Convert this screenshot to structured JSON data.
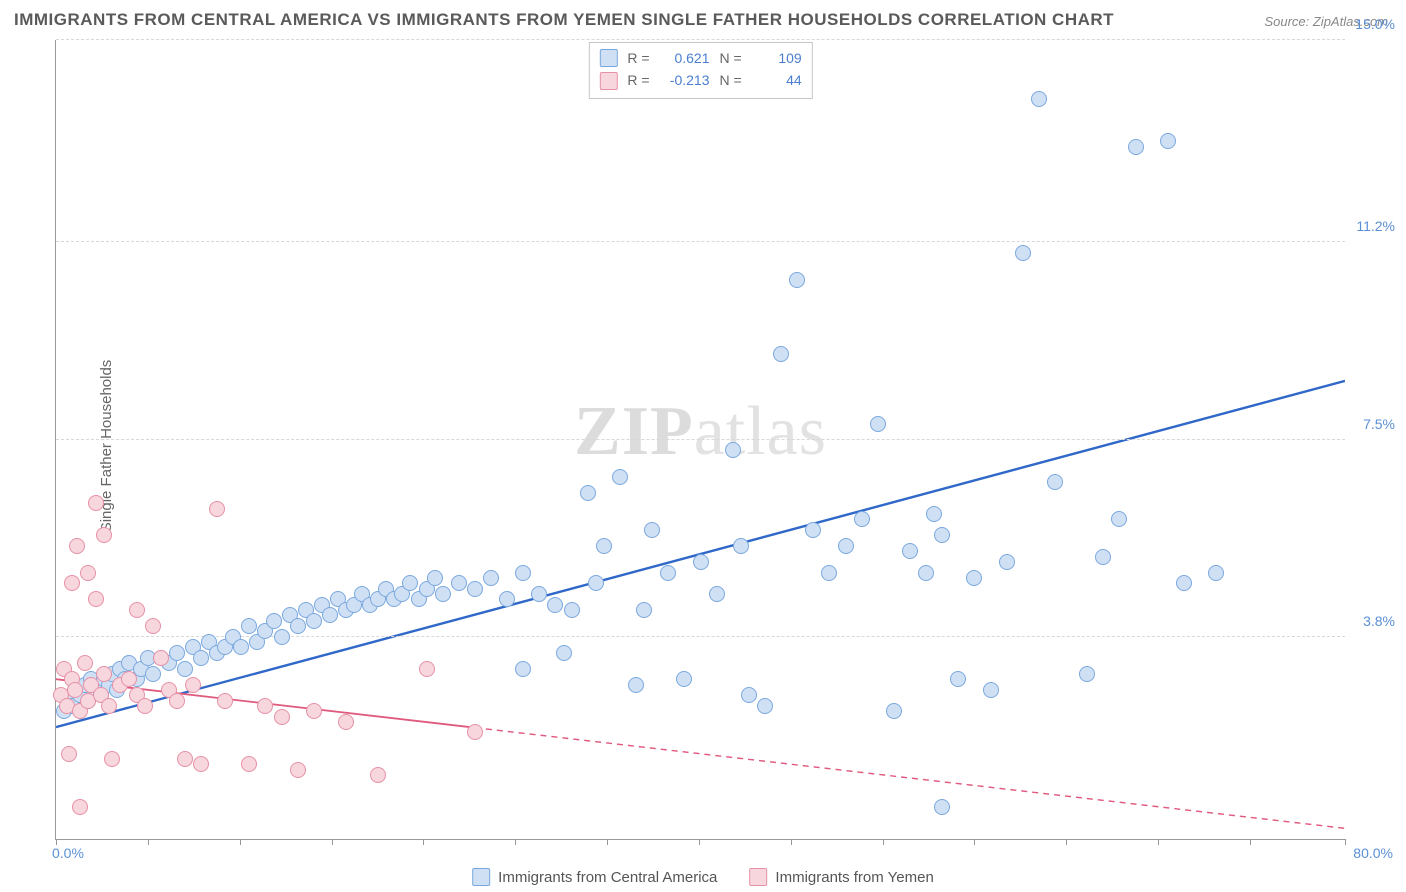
{
  "title": "IMMIGRANTS FROM CENTRAL AMERICA VS IMMIGRANTS FROM YEMEN SINGLE FATHER HOUSEHOLDS CORRELATION CHART",
  "source": "Source: ZipAtlas.com",
  "ylabel": "Single Father Households",
  "watermark_a": "ZIP",
  "watermark_b": "atlas",
  "chart": {
    "type": "scatter",
    "background_color": "#ffffff",
    "grid_color": "#d8d8d8",
    "axis_color": "#999999",
    "tick_label_color": "#5b8fd6",
    "xlim": [
      0,
      80
    ],
    "ylim": [
      0,
      15
    ],
    "xticks": [
      0,
      5.7,
      11.4,
      17.1,
      22.8,
      28.5,
      34.2,
      39.9,
      45.6,
      51.3,
      57.0,
      62.7,
      68.4,
      74.1,
      80.0
    ],
    "ygrid": [
      3.8,
      7.5,
      11.2,
      15.0
    ],
    "ytick_labels": [
      "3.8%",
      "7.5%",
      "11.2%",
      "15.0%"
    ],
    "x_origin_label": "0.0%",
    "x_max_label": "80.0%",
    "marker_radius": 8,
    "marker_stroke_width": 1.4
  },
  "series": [
    {
      "name": "Immigrants from Central America",
      "fill": "#cfe0f5",
      "stroke": "#7aa8de",
      "trend_color": "#2f68c9",
      "trend_width": 2.4,
      "trend": {
        "x1": 0,
        "y1": 2.1,
        "x2": 80,
        "y2": 8.6,
        "dashed_from_x": null
      },
      "R": "0.621",
      "N": "109",
      "points": [
        [
          0.5,
          2.4
        ],
        [
          0.8,
          2.6
        ],
        [
          1.0,
          2.5
        ],
        [
          1.2,
          2.8
        ],
        [
          1.5,
          2.7
        ],
        [
          1.8,
          2.9
        ],
        [
          2.0,
          2.6
        ],
        [
          2.2,
          3.0
        ],
        [
          2.5,
          2.8
        ],
        [
          2.8,
          2.7
        ],
        [
          3.0,
          3.0
        ],
        [
          3.3,
          2.9
        ],
        [
          3.5,
          3.1
        ],
        [
          3.8,
          2.8
        ],
        [
          4.0,
          3.2
        ],
        [
          4.3,
          3.0
        ],
        [
          4.5,
          3.3
        ],
        [
          5.0,
          3.0
        ],
        [
          5.3,
          3.2
        ],
        [
          5.7,
          3.4
        ],
        [
          6.0,
          3.1
        ],
        [
          6.5,
          3.4
        ],
        [
          7.0,
          3.3
        ],
        [
          7.5,
          3.5
        ],
        [
          8.0,
          3.2
        ],
        [
          8.5,
          3.6
        ],
        [
          9.0,
          3.4
        ],
        [
          9.5,
          3.7
        ],
        [
          10.0,
          3.5
        ],
        [
          10.5,
          3.6
        ],
        [
          11.0,
          3.8
        ],
        [
          11.5,
          3.6
        ],
        [
          12.0,
          4.0
        ],
        [
          12.5,
          3.7
        ],
        [
          13.0,
          3.9
        ],
        [
          13.5,
          4.1
        ],
        [
          14.0,
          3.8
        ],
        [
          14.5,
          4.2
        ],
        [
          15.0,
          4.0
        ],
        [
          15.5,
          4.3
        ],
        [
          16.0,
          4.1
        ],
        [
          16.5,
          4.4
        ],
        [
          17.0,
          4.2
        ],
        [
          17.5,
          4.5
        ],
        [
          18.0,
          4.3
        ],
        [
          18.5,
          4.4
        ],
        [
          19.0,
          4.6
        ],
        [
          19.5,
          4.4
        ],
        [
          20.0,
          4.5
        ],
        [
          20.5,
          4.7
        ],
        [
          21.0,
          4.5
        ],
        [
          21.5,
          4.6
        ],
        [
          22.0,
          4.8
        ],
        [
          22.5,
          4.5
        ],
        [
          23.0,
          4.7
        ],
        [
          23.5,
          4.9
        ],
        [
          24.0,
          4.6
        ],
        [
          25.0,
          4.8
        ],
        [
          26.0,
          4.7
        ],
        [
          27.0,
          4.9
        ],
        [
          28.0,
          4.5
        ],
        [
          29.0,
          5.0
        ],
        [
          30.0,
          4.6
        ],
        [
          31.0,
          4.4
        ],
        [
          32.0,
          4.3
        ],
        [
          33.0,
          6.5
        ],
        [
          34.0,
          5.5
        ],
        [
          35.0,
          6.8
        ],
        [
          36.0,
          2.9
        ],
        [
          37.0,
          5.8
        ],
        [
          38.0,
          5.0
        ],
        [
          39.0,
          3.0
        ],
        [
          40.0,
          5.2
        ],
        [
          41.0,
          4.6
        ],
        [
          42.0,
          7.3
        ],
        [
          42.5,
          5.5
        ],
        [
          43.0,
          2.7
        ],
        [
          44.0,
          2.5
        ],
        [
          45.0,
          9.1
        ],
        [
          46.0,
          10.5
        ],
        [
          47.0,
          5.8
        ],
        [
          48.0,
          5.0
        ],
        [
          49.0,
          5.5
        ],
        [
          50.0,
          6.0
        ],
        [
          51.0,
          7.8
        ],
        [
          52.0,
          2.4
        ],
        [
          53.0,
          5.4
        ],
        [
          54.0,
          5.0
        ],
        [
          54.5,
          6.1
        ],
        [
          55.0,
          5.7
        ],
        [
          55.0,
          0.6
        ],
        [
          56.0,
          3.0
        ],
        [
          57.0,
          4.9
        ],
        [
          58.0,
          2.8
        ],
        [
          59.0,
          5.2
        ],
        [
          60.0,
          11.0
        ],
        [
          61.0,
          13.9
        ],
        [
          62.0,
          6.7
        ],
        [
          64.0,
          3.1
        ],
        [
          65.0,
          5.3
        ],
        [
          66.0,
          6.0
        ],
        [
          67.0,
          13.0
        ],
        [
          69.0,
          13.1
        ],
        [
          70.0,
          4.8
        ],
        [
          72.0,
          5.0
        ],
        [
          29.0,
          3.2
        ],
        [
          31.5,
          3.5
        ],
        [
          33.5,
          4.8
        ],
        [
          36.5,
          4.3
        ]
      ]
    },
    {
      "name": "Immigrants from Yemen",
      "fill": "#f7d6dd",
      "stroke": "#e691a6",
      "trend_color": "#e05a7d",
      "trend_width": 1.8,
      "trend": {
        "x1": 0,
        "y1": 3.0,
        "x2": 80,
        "y2": 0.2,
        "dashed_from_x": 26
      },
      "R": "-0.213",
      "N": "44",
      "points": [
        [
          0.3,
          2.7
        ],
        [
          0.5,
          3.2
        ],
        [
          0.7,
          2.5
        ],
        [
          0.8,
          1.6
        ],
        [
          1.0,
          3.0
        ],
        [
          1.0,
          4.8
        ],
        [
          1.2,
          2.8
        ],
        [
          1.3,
          5.5
        ],
        [
          1.5,
          2.4
        ],
        [
          1.5,
          0.6
        ],
        [
          1.8,
          3.3
        ],
        [
          2.0,
          2.6
        ],
        [
          2.0,
          5.0
        ],
        [
          2.2,
          2.9
        ],
        [
          2.5,
          4.5
        ],
        [
          2.5,
          6.3
        ],
        [
          2.8,
          2.7
        ],
        [
          3.0,
          3.1
        ],
        [
          3.0,
          5.7
        ],
        [
          3.3,
          2.5
        ],
        [
          3.5,
          1.5
        ],
        [
          4.0,
          2.9
        ],
        [
          4.5,
          3.0
        ],
        [
          5.0,
          2.7
        ],
        [
          5.0,
          4.3
        ],
        [
          5.5,
          2.5
        ],
        [
          6.0,
          4.0
        ],
        [
          6.5,
          3.4
        ],
        [
          7.0,
          2.8
        ],
        [
          7.5,
          2.6
        ],
        [
          8.0,
          1.5
        ],
        [
          8.5,
          2.9
        ],
        [
          9.0,
          1.4
        ],
        [
          10.0,
          6.2
        ],
        [
          10.5,
          2.6
        ],
        [
          12.0,
          1.4
        ],
        [
          13.0,
          2.5
        ],
        [
          14.0,
          2.3
        ],
        [
          15.0,
          1.3
        ],
        [
          16.0,
          2.4
        ],
        [
          18.0,
          2.2
        ],
        [
          20.0,
          1.2
        ],
        [
          23.0,
          3.2
        ],
        [
          26.0,
          2.0
        ]
      ]
    }
  ],
  "stats_labels": {
    "R": "R  =",
    "N": "N  ="
  },
  "legend_label_a": "Immigrants from Central America",
  "legend_label_b": "Immigrants from Yemen"
}
